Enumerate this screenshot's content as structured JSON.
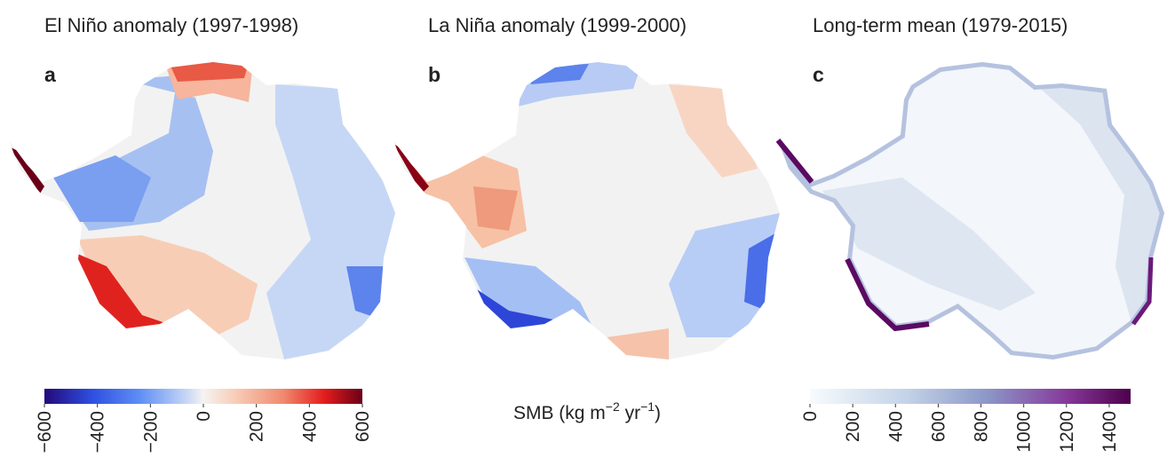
{
  "panels": [
    {
      "title": "El Niño anomaly (1997-1998)",
      "label": "a"
    },
    {
      "title": "La Niña anomaly (1999-2000)",
      "label": "b"
    },
    {
      "title": "Long-term mean (1979-2015)",
      "label": "c"
    }
  ],
  "colorbars": [
    {
      "lim": [
        -600,
        600
      ],
      "ticks": [
        {
          "value": -600,
          "label": "−600"
        },
        {
          "value": -400,
          "label": "−400"
        },
        {
          "value": -200,
          "label": "−200"
        },
        0,
        200,
        400,
        600
      ]
    },
    {
      "lim": [
        0,
        1500
      ],
      "ticks": [
        0,
        200,
        400,
        600,
        800,
        1000,
        1200,
        1400
      ]
    }
  ],
  "colorbar_label": [
    "SMB (kg m",
    "−2",
    " yr",
    "−1",
    ")"
  ]
}
